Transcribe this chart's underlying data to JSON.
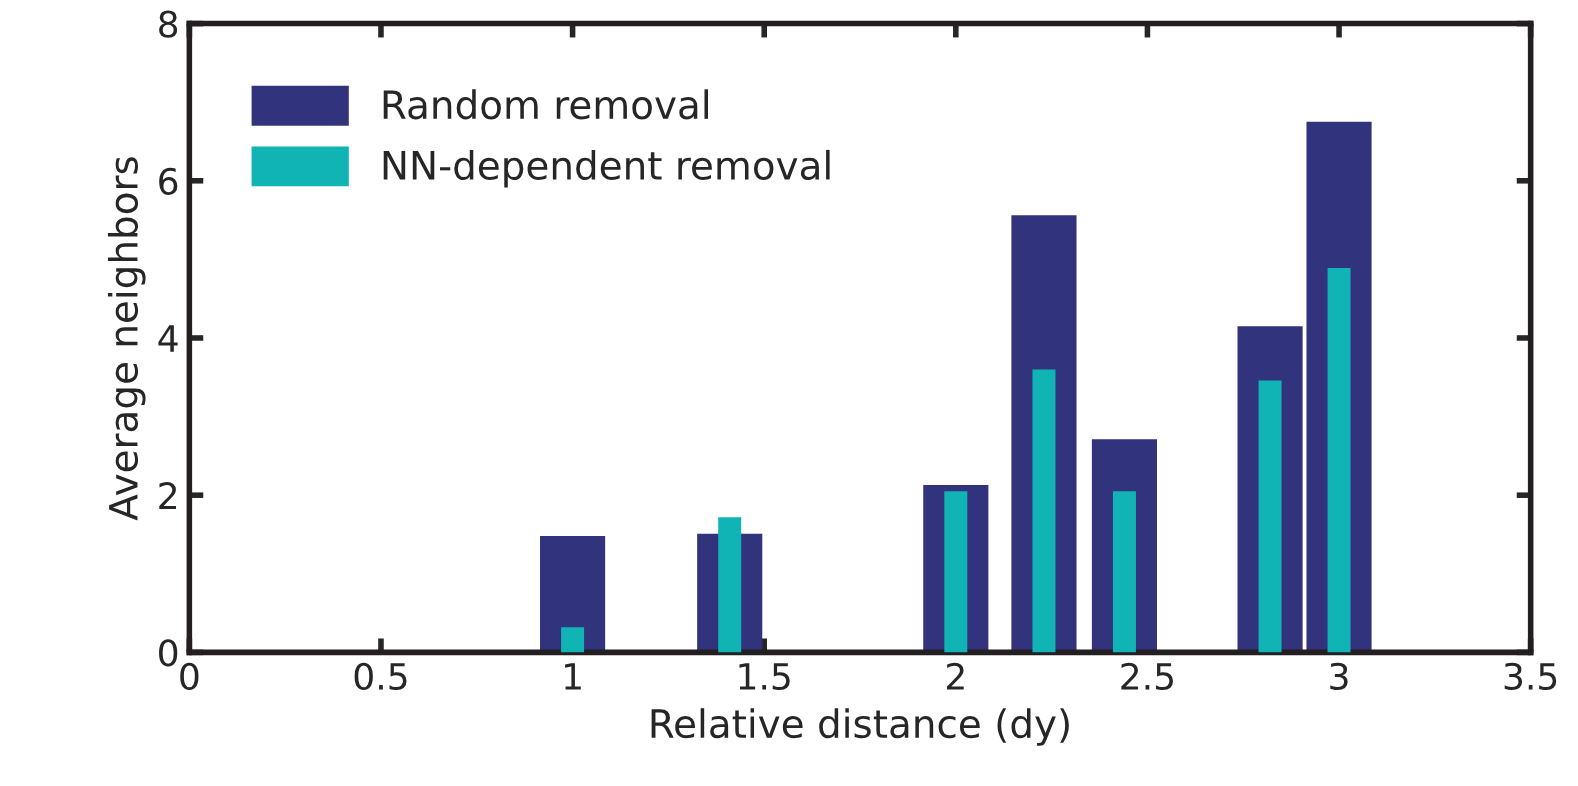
{
  "chart_data": {
    "type": "bar",
    "xlabel": "Relative distance (dy)",
    "ylabel": "Average neighbors",
    "x": [
      1.0,
      1.41,
      2.0,
      2.23,
      2.44,
      2.82,
      3.0
    ],
    "series": [
      {
        "name": "Random removal",
        "color": "#32337d",
        "values": [
          1.48,
          1.51,
          2.13,
          5.56,
          2.71,
          4.15,
          6.75
        ]
      },
      {
        "name": "NN-dependent removal",
        "color": "#10b4b4",
        "values": [
          0.32,
          1.72,
          2.05,
          3.6,
          2.05,
          3.46,
          4.89
        ]
      }
    ],
    "xlim": [
      0,
      3.5
    ],
    "xticks": [
      0,
      0.5,
      1,
      1.5,
      2,
      2.5,
      3,
      3.5
    ],
    "ylim": [
      0,
      8
    ],
    "yticks": [
      0,
      2,
      4,
      6,
      8
    ],
    "legend": "top left"
  }
}
